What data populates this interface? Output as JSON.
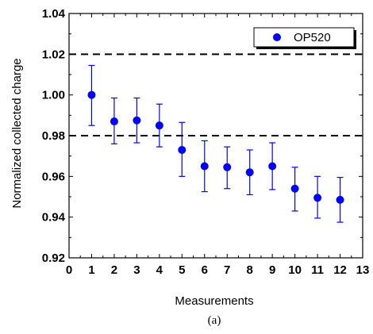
{
  "chart_data": {
    "type": "scatter",
    "title": "",
    "xlabel": "Measurements",
    "ylabel": "Normalized collected charge",
    "caption": "(a)",
    "xlim": [
      0,
      13
    ],
    "ylim": [
      0.92,
      1.04
    ],
    "x_ticks": [
      0,
      1,
      2,
      3,
      4,
      5,
      6,
      7,
      8,
      9,
      10,
      11,
      12,
      13
    ],
    "x_tick_labels": [
      "0",
      "1",
      "2",
      "3",
      "4",
      "5",
      "6",
      "7",
      "8",
      "9",
      "10",
      "11",
      "12",
      "13"
    ],
    "y_ticks": [
      0.92,
      0.94,
      0.96,
      0.98,
      1.0,
      1.02,
      1.04
    ],
    "y_tick_labels": [
      "0.92",
      "0.94",
      "0.96",
      "0.98",
      "1.00",
      "1.02",
      "1.04"
    ],
    "grid": false,
    "legend_position": "top-right",
    "reference_lines": [
      {
        "y": 1.02,
        "style": "dashed"
      },
      {
        "y": 0.98,
        "style": "dashed"
      }
    ],
    "series": [
      {
        "name": "OP520",
        "color": "#0000ff",
        "x": [
          1,
          2,
          3,
          4,
          5,
          6,
          7,
          8,
          9,
          10,
          11,
          12
        ],
        "y": [
          1.0,
          0.987,
          0.9875,
          0.985,
          0.973,
          0.965,
          0.9645,
          0.962,
          0.965,
          0.954,
          0.9495,
          0.9485
        ],
        "err_low": [
          0.985,
          0.976,
          0.9765,
          0.9745,
          0.96,
          0.9525,
          0.954,
          0.951,
          0.9535,
          0.943,
          0.9395,
          0.9375
        ],
        "err_high": [
          1.0145,
          0.9985,
          0.9985,
          0.9955,
          0.9865,
          0.9775,
          0.9745,
          0.973,
          0.9765,
          0.9645,
          0.96,
          0.9595
        ]
      }
    ]
  }
}
